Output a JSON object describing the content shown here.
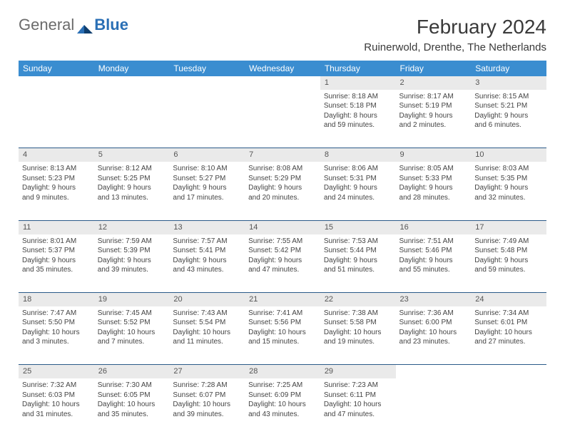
{
  "brand": {
    "part1": "General",
    "part2": "Blue"
  },
  "title": "February 2024",
  "location": "Ruinerwold, Drenthe, The Netherlands",
  "colors": {
    "header_bg": "#3a8dd0",
    "header_text": "#ffffff",
    "daynum_bg": "#eaeaea",
    "rule": "#2a5a88",
    "body_text": "#444444",
    "logo_gray": "#6b6b6b",
    "logo_blue": "#2a6fb5"
  },
  "weekdays": [
    "Sunday",
    "Monday",
    "Tuesday",
    "Wednesday",
    "Thursday",
    "Friday",
    "Saturday"
  ],
  "weeks": [
    [
      null,
      null,
      null,
      null,
      {
        "n": "1",
        "sr": "Sunrise: 8:18 AM",
        "ss": "Sunset: 5:18 PM",
        "dl1": "Daylight: 8 hours",
        "dl2": "and 59 minutes."
      },
      {
        "n": "2",
        "sr": "Sunrise: 8:17 AM",
        "ss": "Sunset: 5:19 PM",
        "dl1": "Daylight: 9 hours",
        "dl2": "and 2 minutes."
      },
      {
        "n": "3",
        "sr": "Sunrise: 8:15 AM",
        "ss": "Sunset: 5:21 PM",
        "dl1": "Daylight: 9 hours",
        "dl2": "and 6 minutes."
      }
    ],
    [
      {
        "n": "4",
        "sr": "Sunrise: 8:13 AM",
        "ss": "Sunset: 5:23 PM",
        "dl1": "Daylight: 9 hours",
        "dl2": "and 9 minutes."
      },
      {
        "n": "5",
        "sr": "Sunrise: 8:12 AM",
        "ss": "Sunset: 5:25 PM",
        "dl1": "Daylight: 9 hours",
        "dl2": "and 13 minutes."
      },
      {
        "n": "6",
        "sr": "Sunrise: 8:10 AM",
        "ss": "Sunset: 5:27 PM",
        "dl1": "Daylight: 9 hours",
        "dl2": "and 17 minutes."
      },
      {
        "n": "7",
        "sr": "Sunrise: 8:08 AM",
        "ss": "Sunset: 5:29 PM",
        "dl1": "Daylight: 9 hours",
        "dl2": "and 20 minutes."
      },
      {
        "n": "8",
        "sr": "Sunrise: 8:06 AM",
        "ss": "Sunset: 5:31 PM",
        "dl1": "Daylight: 9 hours",
        "dl2": "and 24 minutes."
      },
      {
        "n": "9",
        "sr": "Sunrise: 8:05 AM",
        "ss": "Sunset: 5:33 PM",
        "dl1": "Daylight: 9 hours",
        "dl2": "and 28 minutes."
      },
      {
        "n": "10",
        "sr": "Sunrise: 8:03 AM",
        "ss": "Sunset: 5:35 PM",
        "dl1": "Daylight: 9 hours",
        "dl2": "and 32 minutes."
      }
    ],
    [
      {
        "n": "11",
        "sr": "Sunrise: 8:01 AM",
        "ss": "Sunset: 5:37 PM",
        "dl1": "Daylight: 9 hours",
        "dl2": "and 35 minutes."
      },
      {
        "n": "12",
        "sr": "Sunrise: 7:59 AM",
        "ss": "Sunset: 5:39 PM",
        "dl1": "Daylight: 9 hours",
        "dl2": "and 39 minutes."
      },
      {
        "n": "13",
        "sr": "Sunrise: 7:57 AM",
        "ss": "Sunset: 5:41 PM",
        "dl1": "Daylight: 9 hours",
        "dl2": "and 43 minutes."
      },
      {
        "n": "14",
        "sr": "Sunrise: 7:55 AM",
        "ss": "Sunset: 5:42 PM",
        "dl1": "Daylight: 9 hours",
        "dl2": "and 47 minutes."
      },
      {
        "n": "15",
        "sr": "Sunrise: 7:53 AM",
        "ss": "Sunset: 5:44 PM",
        "dl1": "Daylight: 9 hours",
        "dl2": "and 51 minutes."
      },
      {
        "n": "16",
        "sr": "Sunrise: 7:51 AM",
        "ss": "Sunset: 5:46 PM",
        "dl1": "Daylight: 9 hours",
        "dl2": "and 55 minutes."
      },
      {
        "n": "17",
        "sr": "Sunrise: 7:49 AM",
        "ss": "Sunset: 5:48 PM",
        "dl1": "Daylight: 9 hours",
        "dl2": "and 59 minutes."
      }
    ],
    [
      {
        "n": "18",
        "sr": "Sunrise: 7:47 AM",
        "ss": "Sunset: 5:50 PM",
        "dl1": "Daylight: 10 hours",
        "dl2": "and 3 minutes."
      },
      {
        "n": "19",
        "sr": "Sunrise: 7:45 AM",
        "ss": "Sunset: 5:52 PM",
        "dl1": "Daylight: 10 hours",
        "dl2": "and 7 minutes."
      },
      {
        "n": "20",
        "sr": "Sunrise: 7:43 AM",
        "ss": "Sunset: 5:54 PM",
        "dl1": "Daylight: 10 hours",
        "dl2": "and 11 minutes."
      },
      {
        "n": "21",
        "sr": "Sunrise: 7:41 AM",
        "ss": "Sunset: 5:56 PM",
        "dl1": "Daylight: 10 hours",
        "dl2": "and 15 minutes."
      },
      {
        "n": "22",
        "sr": "Sunrise: 7:38 AM",
        "ss": "Sunset: 5:58 PM",
        "dl1": "Daylight: 10 hours",
        "dl2": "and 19 minutes."
      },
      {
        "n": "23",
        "sr": "Sunrise: 7:36 AM",
        "ss": "Sunset: 6:00 PM",
        "dl1": "Daylight: 10 hours",
        "dl2": "and 23 minutes."
      },
      {
        "n": "24",
        "sr": "Sunrise: 7:34 AM",
        "ss": "Sunset: 6:01 PM",
        "dl1": "Daylight: 10 hours",
        "dl2": "and 27 minutes."
      }
    ],
    [
      {
        "n": "25",
        "sr": "Sunrise: 7:32 AM",
        "ss": "Sunset: 6:03 PM",
        "dl1": "Daylight: 10 hours",
        "dl2": "and 31 minutes."
      },
      {
        "n": "26",
        "sr": "Sunrise: 7:30 AM",
        "ss": "Sunset: 6:05 PM",
        "dl1": "Daylight: 10 hours",
        "dl2": "and 35 minutes."
      },
      {
        "n": "27",
        "sr": "Sunrise: 7:28 AM",
        "ss": "Sunset: 6:07 PM",
        "dl1": "Daylight: 10 hours",
        "dl2": "and 39 minutes."
      },
      {
        "n": "28",
        "sr": "Sunrise: 7:25 AM",
        "ss": "Sunset: 6:09 PM",
        "dl1": "Daylight: 10 hours",
        "dl2": "and 43 minutes."
      },
      {
        "n": "29",
        "sr": "Sunrise: 7:23 AM",
        "ss": "Sunset: 6:11 PM",
        "dl1": "Daylight: 10 hours",
        "dl2": "and 47 minutes."
      },
      null,
      null
    ]
  ]
}
